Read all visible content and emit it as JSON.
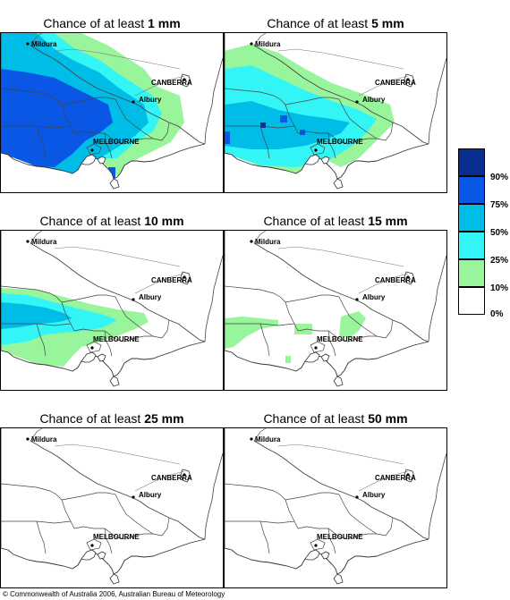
{
  "panels": [
    {
      "prefix": "Chance of at least ",
      "amount": "1 mm"
    },
    {
      "prefix": "Chance of at least ",
      "amount": "5 mm"
    },
    {
      "prefix": "Chance of at least ",
      "amount": "10 mm"
    },
    {
      "prefix": "Chance of at least ",
      "amount": "15 mm"
    },
    {
      "prefix": "Chance of at least ",
      "amount": "25 mm"
    },
    {
      "prefix": "Chance of at least ",
      "amount": "50 mm"
    }
  ],
  "places": {
    "mildura": "Mildura",
    "canberra": "CANBERRA",
    "albury": "Albury",
    "melbourne": "MELBOURNE"
  },
  "legend": {
    "labels": [
      "90%",
      "75%",
      "50%",
      "25%",
      "10%",
      "0%"
    ],
    "colors": [
      "#0a2e8f",
      "#0a57e6",
      "#00bde8",
      "#33f5f5",
      "#99f59c",
      "#ffffff"
    ]
  },
  "copyright": "© Commonwealth of Australia 2006, Australian Bureau of Meteorology"
}
